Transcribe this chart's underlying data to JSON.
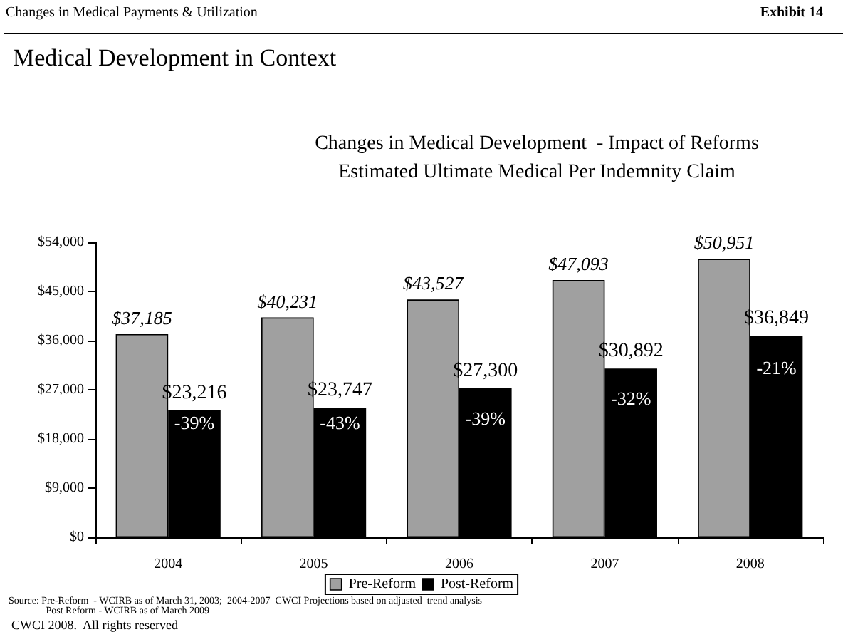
{
  "chart_data": {
    "type": "bar",
    "title": "Medical Development in Context",
    "subtitle": "Changes in Medical Development  - Impact of Reforms\nEstimated Ultimate Medical Per Indemnity Claim",
    "categories": [
      "2004",
      "2005",
      "2006",
      "2007",
      "2008"
    ],
    "series": [
      {
        "name": "Pre-Reform",
        "color": "#a0a0a0",
        "values": [
          37185,
          40231,
          43527,
          47093,
          50951
        ],
        "value_labels": [
          "$37,185",
          "$40,231",
          "$43,527",
          "$47,093",
          "$50,951"
        ]
      },
      {
        "name": "Post-Reform",
        "color": "#000000",
        "values": [
          23216,
          23747,
          27300,
          30892,
          36849
        ],
        "value_labels": [
          "$23,216",
          "$23,747",
          "$27,300",
          "$30,892",
          "$36,849"
        ]
      }
    ],
    "ylim": [
      0,
      54000
    ],
    "yticks": [
      {
        "value": 0,
        "label": "$0"
      },
      {
        "value": 9000,
        "label": "$9,000"
      },
      {
        "value": 18000,
        "label": "$18,000"
      },
      {
        "value": 27000,
        "label": "$27,000"
      },
      {
        "value": 36000,
        "label": "$36,000"
      },
      {
        "value": 45000,
        "label": "$45,000"
      },
      {
        "value": 54000,
        "label": "$54,000"
      }
    ],
    "grid": false,
    "legend": "bottom",
    "annotations": [
      "Changes in Medical Payments & Utilization",
      "Exhibit 14",
      "Source: Pre-Reform  - WCIRB as of March 31, 2003;  2004-2007  CWCI Projections based on adjusted  trend analysis\n               Post Reform - WCIRB as of March 2009",
      "CWCI 2008.  All rights reserved",
      {
        "text": "-39%",
        "x": "2004",
        "y": 21000
      },
      {
        "text": "-43%",
        "x": "2005",
        "y": 21000
      },
      {
        "text": "-39%",
        "x": "2006",
        "y": 21800
      },
      {
        "text": "-32%",
        "x": "2007",
        "y": 25400
      },
      {
        "text": "-21%",
        "x": "2008",
        "y": 31000
      }
    ]
  }
}
